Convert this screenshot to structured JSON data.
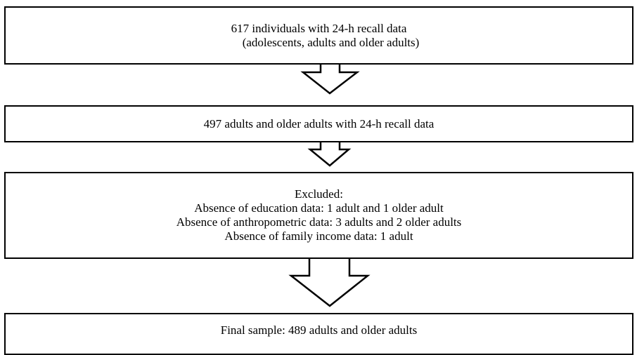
{
  "flowchart": {
    "box_1": {
      "line_1": "617 individuals with 24-h recall data",
      "line_2": "(adolescents, adults and older adults)"
    },
    "box_2": {
      "line_1": "497 adults and older adults with 24-h recall data"
    },
    "box_3": {
      "line_1": "Excluded:",
      "line_2": "Absence of education data: 1 adult and 1 older adult",
      "line_3": "Absence of anthropometric data: 3 adults and 2 older adults",
      "line_4": "Absence of family income data: 1 adult"
    },
    "box_4": {
      "line_1": "Final sample: 489 adults and older adults"
    }
  },
  "colors": {
    "stroke": "#000000",
    "fill": "#ffffff"
  }
}
